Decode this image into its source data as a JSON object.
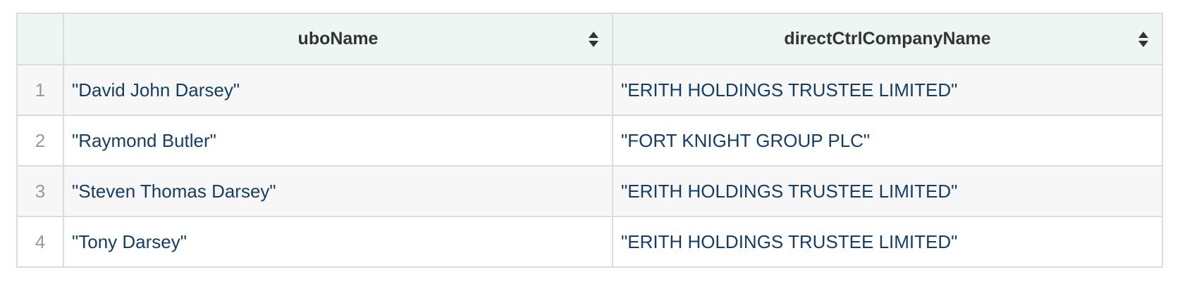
{
  "table": {
    "columns": [
      "uboName",
      "directCtrlCompanyName"
    ],
    "rows": [
      [
        1,
        "\"David John Darsey\"",
        "\"ERITH HOLDINGS TRUSTEE LIMITED\""
      ],
      [
        2,
        "\"Raymond Butler\"",
        "\"FORT KNIGHT GROUP PLC\""
      ],
      [
        3,
        "\"Steven Thomas Darsey\"",
        "\"ERITH HOLDINGS TRUSTEE LIMITED\""
      ],
      [
        4,
        "\"Tony Darsey\"",
        "\"ERITH HOLDINGS TRUSTEE LIMITED\""
      ]
    ]
  }
}
